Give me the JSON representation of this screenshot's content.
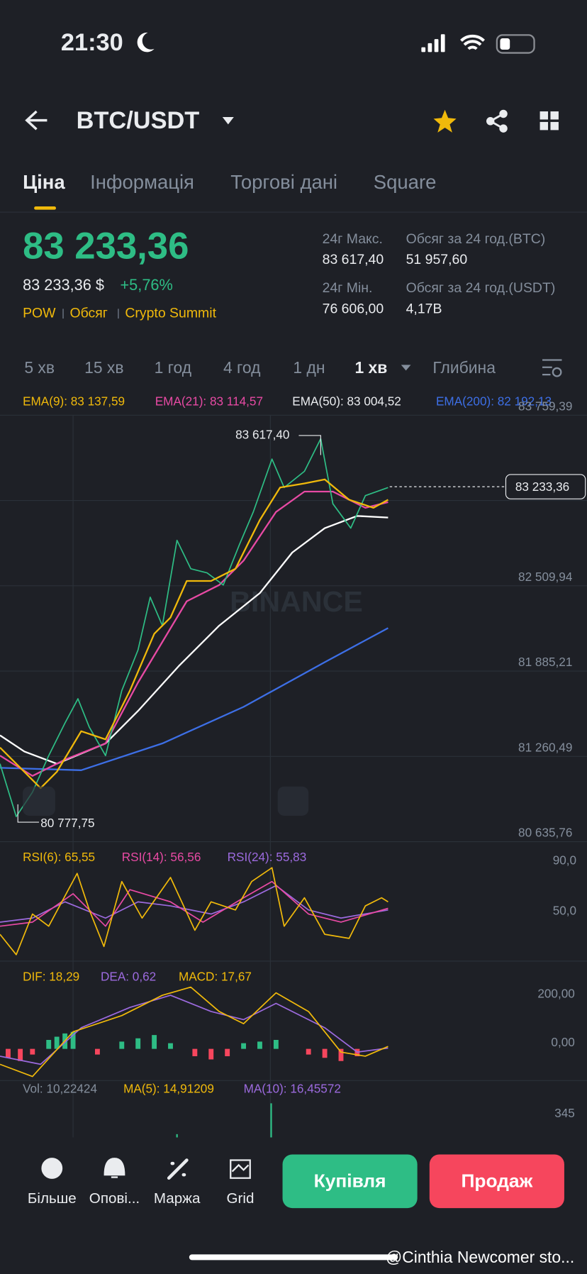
{
  "status_bar": {
    "time": "21:30"
  },
  "header": {
    "pair": "BTC/USDT"
  },
  "tabs": [
    "Ціна",
    "Інформація",
    "Торгові дані",
    "Square"
  ],
  "price": {
    "last": "83 233,36",
    "usd": "83 233,36 $",
    "change": "+5,76%",
    "tags": [
      "POW",
      "Обсяг",
      "Crypto Summit"
    ]
  },
  "stats": [
    {
      "label": "24г Макс.",
      "value": "83 617,40"
    },
    {
      "label": "Обсяг за 24 год.(BTC)",
      "value": "51 957,60"
    },
    {
      "label": "24г Мін.",
      "value": "76 606,00"
    },
    {
      "label": "Обсяг за 24 год.(USDT)",
      "value": "4,17B"
    }
  ],
  "intervals": [
    "5 хв",
    "15 хв",
    "1 год",
    "4 год",
    "1 дн",
    "1 хв"
  ],
  "depth": "Глибина",
  "chart": {
    "ema": [
      "EMA(9): 83 137,59",
      "EMA(21): 83 114,57",
      "EMA(50): 83 004,52",
      "EMA(200): 82 192,13"
    ],
    "price_axis": [
      "83 759,39",
      "82 509,94",
      "81 885,21",
      "81 260,49",
      "80 635,76"
    ],
    "current_price": "83 233,36",
    "high": "83 617,40",
    "low": "80 777,75",
    "watermark": "BINANCE"
  },
  "rsi": {
    "labels": [
      "RSI(6): 65,55",
      "RSI(14): 56,56",
      "RSI(24): 55,83"
    ],
    "axis": [
      "90,0",
      "50,0"
    ]
  },
  "macd": {
    "labels": [
      "DIF: 18,29",
      "DEA: 0,62",
      "MACD: 17,67"
    ],
    "axis": [
      "200,00",
      "0,00"
    ]
  },
  "volume": {
    "labels": [
      "Vol: 10,22424",
      "MA(5): 14,91209",
      "MA(10): 16,45572"
    ],
    "axis": [
      "345"
    ]
  },
  "bottom_bar": {
    "nav": [
      "Більше",
      "Опові...",
      "Маржа",
      "Grid"
    ],
    "buy": "Купівля",
    "sell": "Продаж"
  },
  "overlay": "@Cinthia Newcomer sto..."
}
